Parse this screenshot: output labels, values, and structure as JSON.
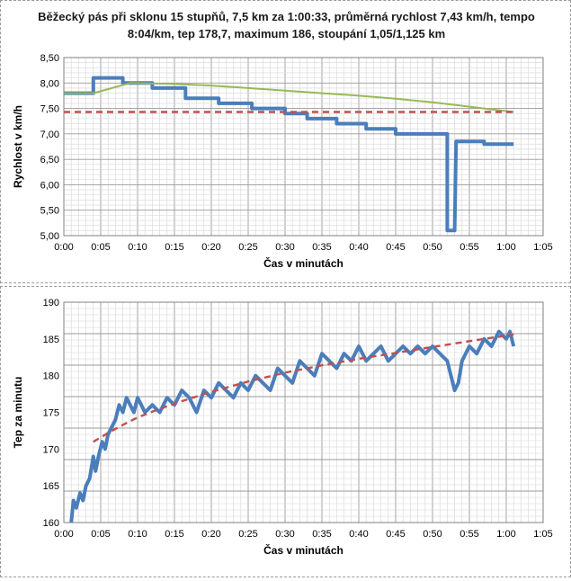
{
  "chart_data": [
    {
      "type": "line",
      "title": "Běžecký pás při sklonu 15 stupňů, 7,5 km za 1:00:33, průměrná rychlost 7,43 km/h, tempo 8:04/km, tep 178,7, maximum 186, stoupání 1,05/1,125 km",
      "xlabel": "Čas v minutách",
      "ylabel": "Rychlost v km/h",
      "xlim_minutes": [
        0,
        65
      ],
      "ylim": [
        5.0,
        8.5
      ],
      "x_ticks": [
        "0:00",
        "0:05",
        "0:10",
        "0:15",
        "0:20",
        "0:25",
        "0:30",
        "0:35",
        "0:40",
        "0:45",
        "0:50",
        "0:55",
        "1:00",
        "1:05"
      ],
      "y_ticks": [
        "5,00",
        "5,50",
        "6,00",
        "6,50",
        "7,00",
        "7,50",
        "8,00",
        "8,50"
      ],
      "grid": true,
      "series": [
        {
          "color": "#4a7ebb",
          "style": "solid-thick",
          "x": [
            0,
            4,
            4,
            8,
            8,
            12,
            12,
            16.5,
            16.5,
            21,
            21,
            25.5,
            25.5,
            30,
            30,
            33,
            33,
            37,
            37,
            41,
            41,
            45,
            45,
            49.5,
            49.5,
            52,
            52,
            53,
            53,
            53.2,
            53.2,
            57,
            57,
            61
          ],
          "y": [
            7.8,
            7.8,
            8.1,
            8.1,
            8.0,
            8.0,
            7.9,
            7.9,
            7.7,
            7.7,
            7.6,
            7.6,
            7.5,
            7.5,
            7.4,
            7.4,
            7.3,
            7.3,
            7.2,
            7.2,
            7.1,
            7.1,
            7.0,
            7.0,
            7.0,
            7.0,
            5.1,
            5.1,
            5.1,
            6.85,
            6.85,
            6.85,
            6.8,
            6.8
          ]
        },
        {
          "color": "#98b954",
          "style": "solid",
          "x": [
            0,
            4,
            9,
            15,
            20,
            25,
            30,
            35,
            40,
            45,
            50,
            53,
            57,
            61
          ],
          "y": [
            7.8,
            7.8,
            8.0,
            7.98,
            7.95,
            7.9,
            7.85,
            7.8,
            7.75,
            7.69,
            7.62,
            7.57,
            7.5,
            7.43
          ]
        },
        {
          "color": "#c0504d",
          "style": "dashed",
          "x": [
            0,
            61
          ],
          "y": [
            7.43,
            7.43
          ]
        }
      ]
    },
    {
      "type": "line",
      "title": "",
      "xlabel": "Čas v minutách",
      "ylabel": "Tep za minutu",
      "xlim_minutes": [
        0,
        65
      ],
      "ylim": [
        160,
        190
      ],
      "x_ticks": [
        "0:00",
        "0:05",
        "0:10",
        "0:15",
        "0:20",
        "0:25",
        "0:30",
        "0:35",
        "0:40",
        "0:45",
        "0:50",
        "0:55",
        "1:00",
        "1:05"
      ],
      "y_ticks": [
        "160",
        "165",
        "170",
        "175",
        "180",
        "185",
        "190"
      ],
      "grid": true,
      "series": [
        {
          "color": "#4a7ebb",
          "style": "solid-thick",
          "x": [
            1,
            1.3,
            1.7,
            2.2,
            2.6,
            3.0,
            3.5,
            4.0,
            4.3,
            4.7,
            5.2,
            5.6,
            6.0,
            6.5,
            7.0,
            7.5,
            8.0,
            8.5,
            9.0,
            9.5,
            10,
            10.5,
            11,
            12,
            13,
            14,
            15,
            16,
            17,
            18,
            19,
            20,
            21,
            22,
            23,
            24,
            25,
            26,
            27,
            28,
            29,
            30,
            31,
            32,
            33,
            34,
            35,
            36,
            37,
            38,
            39,
            40,
            41,
            42,
            43,
            44,
            45,
            46,
            47,
            48,
            49,
            50,
            51,
            52,
            52.5,
            53,
            53.5,
            54,
            55,
            56,
            57,
            58,
            59,
            60,
            60.5,
            61
          ],
          "y": [
            160,
            163,
            162,
            164,
            163,
            165,
            166,
            169,
            167,
            169,
            171,
            170,
            172,
            173,
            174,
            176,
            175,
            177,
            176,
            175,
            177,
            176,
            175,
            176,
            175,
            177,
            176,
            178,
            177,
            175,
            178,
            177,
            179,
            178,
            177,
            179,
            178,
            180,
            179,
            178,
            181,
            180,
            179,
            182,
            181,
            180,
            183,
            182,
            181,
            183,
            182,
            184,
            182,
            183,
            184,
            182,
            183,
            184,
            183,
            184,
            183,
            184,
            183,
            182,
            180,
            178,
            179,
            182,
            184,
            183,
            185,
            184,
            186,
            185,
            186,
            184
          ]
        },
        {
          "color": "#c0504d",
          "style": "dashed",
          "x": [
            4,
            6,
            8,
            10,
            12,
            15,
            20,
            25,
            30,
            35,
            40,
            45,
            50,
            55,
            61
          ],
          "y": [
            171,
            172.2,
            173.3,
            174.3,
            175.1,
            176.2,
            177.8,
            179.2,
            180.4,
            181.4,
            182.3,
            183.1,
            183.9,
            184.7,
            185.6
          ]
        }
      ]
    }
  ]
}
